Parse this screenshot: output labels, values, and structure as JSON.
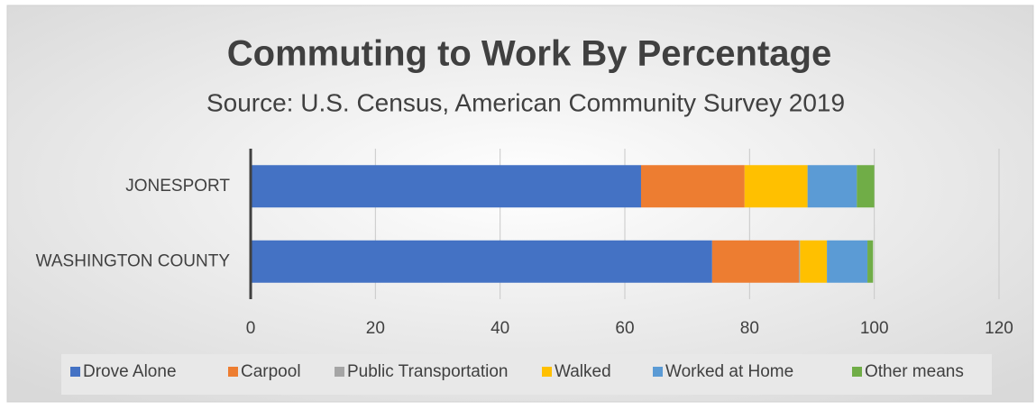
{
  "chart_data": {
    "type": "stacked_bar_horizontal",
    "title": "Commuting to Work By Percentage",
    "subtitle": "Source:  U.S. Census, American Community Survey 2019",
    "categories": [
      "JONESPORT",
      "WASHINGTON COUNTY"
    ],
    "series": [
      {
        "name": "Drove Alone",
        "color": "#4472c4",
        "values": [
          62.6,
          74.0
        ]
      },
      {
        "name": "Carpool",
        "color": "#ed7d31",
        "values": [
          16.6,
          13.9
        ]
      },
      {
        "name": "Public Transportation",
        "color": "#a5a5a5",
        "values": [
          0,
          0.2
        ]
      },
      {
        "name": "Walked",
        "color": "#ffc000",
        "values": [
          10.1,
          4.3
        ]
      },
      {
        "name": "Worked at Home",
        "color": "#5b9bd5",
        "values": [
          7.9,
          6.5
        ]
      },
      {
        "name": "Other means",
        "color": "#70ad47",
        "values": [
          2.8,
          0.9
        ]
      }
    ],
    "xlim": [
      0,
      120
    ],
    "xticks": [
      0,
      20,
      40,
      60,
      80,
      100,
      120
    ],
    "grid": true,
    "legend": "bottom"
  }
}
